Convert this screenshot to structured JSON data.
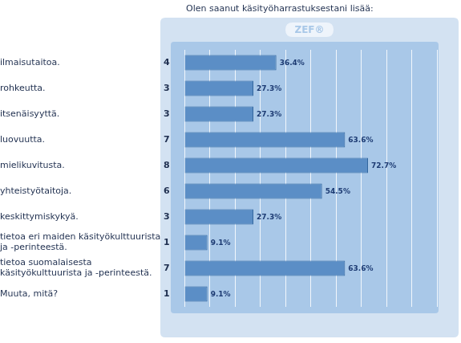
{
  "chart_data": {
    "type": "bar",
    "orientation": "horizontal",
    "title": "Olen saanut käsityöharrastuksestani lisää:",
    "annotations": [
      "ZEF®"
    ],
    "categories": [
      "ilmaisutaitoa.",
      "rohkeutta.",
      "itsenäisyyttä.",
      "luovuutta.",
      "mielikuvitusta.",
      "yhteistyötaitoja.",
      "keskittymiskykyä.",
      [
        "tietoa eri maiden käsityökulttuurista",
        "ja -perinteestä."
      ],
      [
        "tietoa suomalaisesta",
        "käsityökulttuurista ja -perinteestä."
      ],
      "Muuta, mitä?"
    ],
    "counts": [
      4,
      3,
      3,
      7,
      8,
      6,
      3,
      1,
      7,
      1
    ],
    "values": [
      36.4,
      27.3,
      27.3,
      63.6,
      72.7,
      54.5,
      27.3,
      9.1,
      63.6,
      9.1
    ],
    "value_labels": [
      "36.4%",
      "27.3%",
      "27.3%",
      "63.6%",
      "72.7%",
      "54.5%",
      "27.3%",
      "9.1%",
      "63.6%",
      "9.1%"
    ],
    "data_labels": true,
    "color": "#5b8ec6",
    "xlim": [
      0,
      100
    ],
    "xticks": [
      0,
      10,
      20,
      30,
      40,
      50,
      60,
      70,
      80,
      90,
      100
    ],
    "grid": true,
    "tick_labels": "y"
  }
}
